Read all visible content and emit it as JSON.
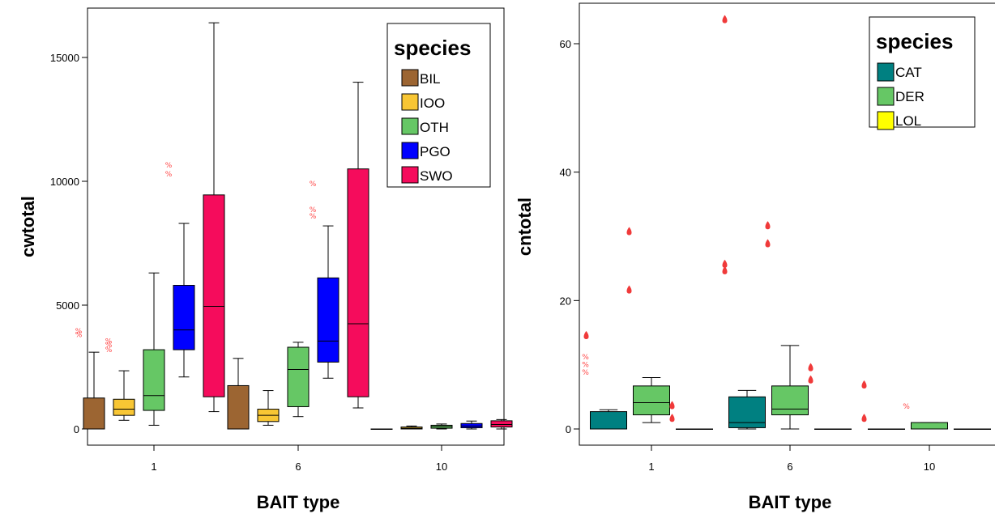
{
  "chart_data": [
    {
      "type": "boxplot",
      "xlabel": "BAIT type",
      "ylabel": "cwtotal",
      "categories": [
        "1",
        "6",
        "10"
      ],
      "yticks": [
        0,
        5000,
        10000,
        15000
      ],
      "tick_labels": [
        "0",
        "5000",
        "10000",
        "15000"
      ],
      "ylim": [
        -300,
        16800
      ],
      "legend": {
        "title": "species",
        "position": "top-right"
      },
      "series": [
        {
          "name": "BIL",
          "color": "#9c6532",
          "boxes": [
            {
              "whisker_low": 0,
              "q1": 0,
              "median": 0,
              "q3": 1250,
              "whisker_high": 3100,
              "outliers": [
                3800,
                3950
              ]
            },
            {
              "whisker_low": 0,
              "q1": 0,
              "median": 0,
              "q3": 1750,
              "whisker_high": 2850,
              "outliers": []
            },
            {
              "whisker_low": 0,
              "q1": 0,
              "median": 0,
              "q3": 0,
              "whisker_high": 0,
              "outliers": []
            }
          ]
        },
        {
          "name": "IOO",
          "color": "#f8c634",
          "boxes": [
            {
              "whisker_low": 350,
              "q1": 550,
              "median": 800,
              "q3": 1200,
              "whisker_high": 2350,
              "outliers": [
                3200,
                3400,
                3550
              ]
            },
            {
              "whisker_low": 150,
              "q1": 300,
              "median": 550,
              "q3": 800,
              "whisker_high": 1550,
              "outliers": []
            },
            {
              "whisker_low": 0,
              "q1": 0,
              "median": 30,
              "q3": 80,
              "whisker_high": 120,
              "outliers": []
            }
          ]
        },
        {
          "name": "OTH",
          "color": "#66c765",
          "boxes": [
            {
              "whisker_low": 150,
              "q1": 750,
              "median": 1350,
              "q3": 3200,
              "whisker_high": 6300,
              "outliers": []
            },
            {
              "whisker_low": 500,
              "q1": 900,
              "median": 2400,
              "q3": 3300,
              "whisker_high": 3500,
              "outliers": []
            },
            {
              "whisker_low": 0,
              "q1": 30,
              "median": 100,
              "q3": 150,
              "whisker_high": 200,
              "outliers": []
            }
          ]
        },
        {
          "name": "PGO",
          "color": "#0000ff",
          "boxes": [
            {
              "whisker_low": 2100,
              "q1": 3200,
              "median": 4000,
              "q3": 5800,
              "whisker_high": 8300,
              "outliers": [
                10300,
                10650
              ]
            },
            {
              "whisker_low": 2050,
              "q1": 2700,
              "median": 3550,
              "q3": 6100,
              "whisker_high": 8200,
              "outliers": [
                8600,
                8850,
                9900
              ]
            },
            {
              "whisker_low": 0,
              "q1": 50,
              "median": 120,
              "q3": 220,
              "whisker_high": 320,
              "outliers": []
            }
          ]
        },
        {
          "name": "SWO",
          "color": "#f50c5c",
          "boxes": [
            {
              "whisker_low": 700,
              "q1": 1300,
              "median": 4950,
              "q3": 9450,
              "whisker_high": 16400,
              "outliers": []
            },
            {
              "whisker_low": 850,
              "q1": 1300,
              "median": 4250,
              "q3": 10500,
              "whisker_high": 14000,
              "outliers": []
            },
            {
              "whisker_low": 0,
              "q1": 80,
              "median": 180,
              "q3": 330,
              "whisker_high": 380,
              "outliers": []
            }
          ]
        }
      ]
    },
    {
      "type": "boxplot",
      "xlabel": "BAIT type",
      "ylabel": "cntotal",
      "categories": [
        "1",
        "6",
        "10"
      ],
      "yticks": [
        0,
        20,
        40,
        60
      ],
      "tick_labels": [
        "0",
        "20",
        "40",
        "60"
      ],
      "ylim": [
        -1.5,
        65.5
      ],
      "legend": {
        "title": "species",
        "position": "top-right"
      },
      "series": [
        {
          "name": "CAT",
          "color": "#008081",
          "boxes": [
            {
              "whisker_low": 0,
              "q1": 0,
              "median": 0,
              "q3": 2.7,
              "whisker_high": 3,
              "outliers": [
                8.8,
                10,
                11.2
              ],
              "extremes": [
                14.5
              ]
            },
            {
              "whisker_low": 0,
              "q1": 0.2,
              "median": 1,
              "q3": 5,
              "whisker_high": 6,
              "outliers": [],
              "extremes": [
                24.6,
                25.6,
                63.7
              ]
            },
            {
              "whisker_low": 0,
              "q1": 0,
              "median": 0,
              "q3": 0,
              "whisker_high": 0,
              "outliers": [],
              "extremes": [
                1.6,
                6.8
              ]
            }
          ]
        },
        {
          "name": "DER",
          "color": "#66c765",
          "boxes": [
            {
              "whisker_low": 1,
              "q1": 2.2,
              "median": 4.1,
              "q3": 6.7,
              "whisker_high": 8,
              "outliers": [],
              "extremes": [
                21.6,
                30.7
              ]
            },
            {
              "whisker_low": 0,
              "q1": 2.2,
              "median": 3.1,
              "q3": 6.7,
              "whisker_high": 13,
              "outliers": [],
              "extremes": [
                28.8,
                31.6
              ]
            },
            {
              "whisker_low": 0,
              "q1": 0,
              "median": 0,
              "q3": 1,
              "whisker_high": 1,
              "outliers": [
                3.5
              ],
              "extremes": []
            }
          ]
        },
        {
          "name": "LOL",
          "color": "#ffff00",
          "boxes": [
            {
              "whisker_low": 0,
              "q1": 0,
              "median": 0,
              "q3": 0,
              "whisker_high": 0,
              "outliers": [],
              "extremes": [
                1.6,
                3.6
              ]
            },
            {
              "whisker_low": 0,
              "q1": 0,
              "median": 0,
              "q3": 0,
              "whisker_high": 0,
              "outliers": [],
              "extremes": [
                7.6,
                9.5
              ]
            },
            {
              "whisker_low": 0,
              "q1": 0,
              "median": 0,
              "q3": 0,
              "whisker_high": 0,
              "outliers": [],
              "extremes": []
            }
          ]
        }
      ]
    }
  ]
}
